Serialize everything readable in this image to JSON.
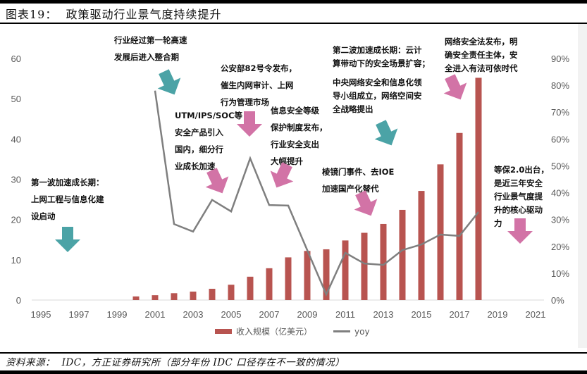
{
  "header": {
    "title": "图表19：  政策驱动行业景气度持续提升"
  },
  "source": {
    "text": "资料来源：  IDC，方正证券研究所（部分年份 IDC 口径存在不一致的情况）"
  },
  "legend": {
    "bar_label": "收入规模（亿美元）",
    "line_label": "yoy"
  },
  "colors": {
    "bar": "#b85450",
    "line": "#7f7f7f",
    "teal_arrow": "#4ba3a6",
    "pink_arrow": "#d273a6",
    "axis_text": "#595959",
    "gridline": "#d9d9d9"
  },
  "annotations": [
    {
      "id": "wave1",
      "lines": [
        "第一波加速成长期：",
        "上网工程与信息化建",
        "设启动"
      ],
      "arrow": "teal"
    },
    {
      "id": "consolidation",
      "lines": [
        "行业经过第一轮高速",
        "发展后进入整合期"
      ],
      "arrow": "teal"
    },
    {
      "id": "utm",
      "lines": [
        "UTM/IPS/SOC等",
        "安全产品引入",
        "国内，细分行",
        "业成长加速"
      ],
      "arrow": "pink"
    },
    {
      "id": "mps82",
      "lines": [
        "公安部82号令发布，",
        "催生内网审计、上网",
        "行为管理市场"
      ],
      "arrow": "pink"
    },
    {
      "id": "dengbao",
      "lines": [
        "信息安全等级",
        "保护制度发布，",
        "行业安全支出",
        "大幅提升"
      ],
      "arrow": "pink"
    },
    {
      "id": "prism",
      "lines": [
        "棱镜门事件、去IOE",
        "加速国产化替代"
      ],
      "arrow": "pink"
    },
    {
      "id": "cac",
      "lines": [
        "中央网络安全和信息化领",
        "导小组成立，网络空间安",
        "全战略提出"
      ],
      "arrow": "teal"
    },
    {
      "id": "wave2",
      "lines": [
        "第二波加速成长期：云计",
        "算带动下的安全场景扩容；"
      ],
      "arrow": "none"
    },
    {
      "id": "cslaw",
      "lines": [
        "网络安全法发布，明",
        "确安全责任主体，安",
        "全进入有法可依时代"
      ],
      "arrow": "pink"
    },
    {
      "id": "dengbao2",
      "lines": [
        "等保2.0出台，",
        "是近三年安全",
        "行业景气度提",
        "升的核心驱动",
        "力"
      ],
      "arrow": "pink"
    }
  ],
  "chart_data": {
    "type": "bar+line",
    "title": "政策驱动行业景气度持续提升",
    "x": [
      1995,
      1996,
      1997,
      1998,
      1999,
      2000,
      2001,
      2002,
      2003,
      2004,
      2005,
      2006,
      2007,
      2008,
      2009,
      2010,
      2011,
      2012,
      2013,
      2014,
      2015,
      2016,
      2017,
      2018,
      2019,
      2020,
      2021
    ],
    "x_tick_labels": [
      "1995",
      "1997",
      "1999",
      "2001",
      "2003",
      "2005",
      "2007",
      "2009",
      "2011",
      "2013",
      "2015",
      "2017",
      "2019",
      "2021"
    ],
    "series": [
      {
        "name": "收入规模（亿美元）",
        "type": "bar",
        "axis": "left",
        "values": [
          null,
          null,
          null,
          null,
          null,
          0.9,
          1.2,
          1.7,
          2.1,
          2.8,
          3.8,
          5.8,
          7.9,
          10.6,
          12.2,
          12.6,
          14.8,
          16.7,
          18.9,
          22.4,
          27.1,
          33.7,
          41.5,
          55.2,
          null,
          null,
          null
        ]
      },
      {
        "name": "yoy",
        "type": "line",
        "axis": "right",
        "unit": "%",
        "values": [
          null,
          null,
          null,
          null,
          null,
          null,
          78,
          28.3,
          25.5,
          37.3,
          33,
          52.8,
          35.4,
          35.2,
          18.6,
          2.1,
          17.6,
          13.6,
          13.1,
          18.6,
          20.7,
          24.4,
          23.9,
          32.8,
          null,
          null,
          null
        ]
      }
    ],
    "y_left": {
      "ticks": [
        0,
        10,
        20,
        30,
        40,
        50,
        60
      ],
      "range": [
        0,
        60
      ]
    },
    "y_right": {
      "ticks": [
        "0%",
        "10%",
        "20%",
        "30%",
        "40%",
        "50%",
        "60%",
        "70%",
        "80%",
        "90%"
      ],
      "range": [
        0,
        90
      ]
    },
    "legend_position": "bottom",
    "grid": false
  }
}
